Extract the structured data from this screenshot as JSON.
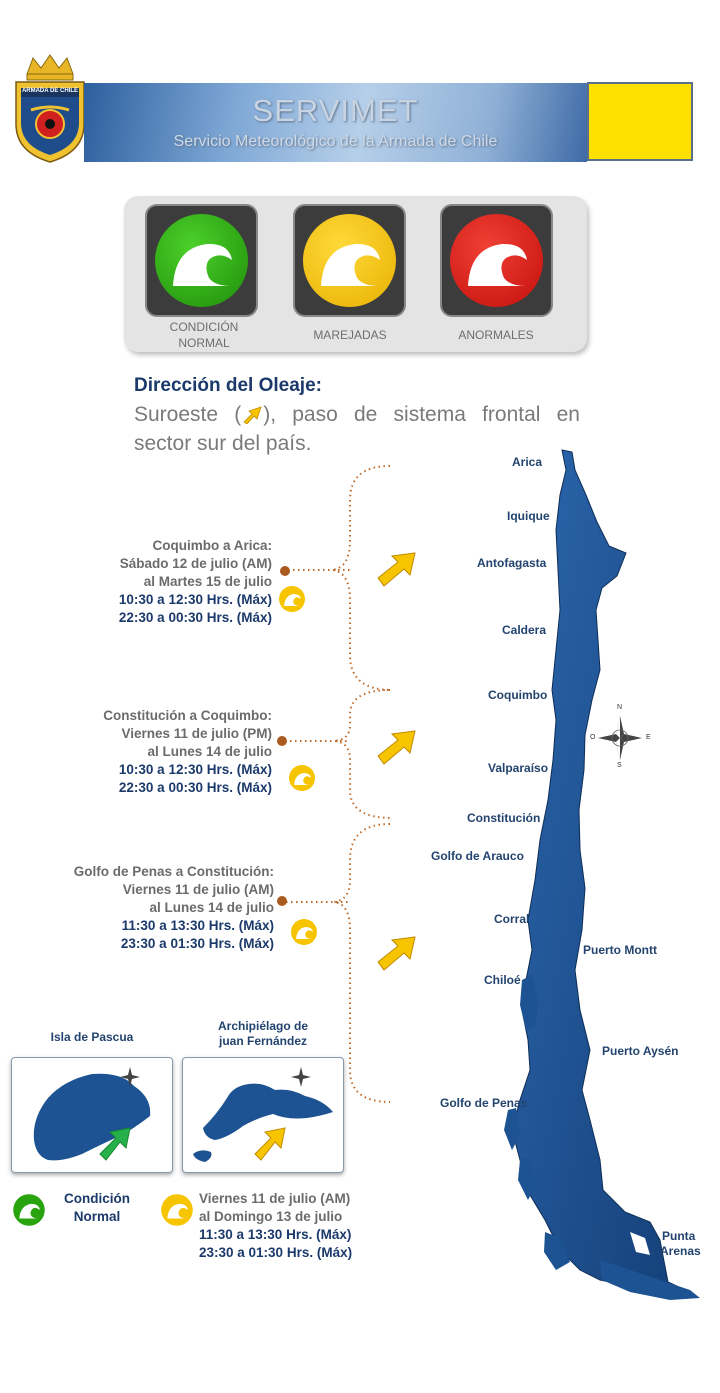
{
  "header": {
    "crest_text": "ARMADA DE CHILE",
    "title": "SERVIMET",
    "subtitle": "Servicio Meteorológico de la Armada de Chile"
  },
  "legend": {
    "items": [
      {
        "label_line1": "CONDICIÓN",
        "label_line2": "NORMAL",
        "color": "#2aa40e"
      },
      {
        "label_line1": "MAREJADAS",
        "label_line2": "",
        "color": "#f7c400"
      },
      {
        "label_line1": "ANORMALES",
        "label_line2": "",
        "color": "#e0201a"
      }
    ]
  },
  "direction": {
    "title": "Dirección del Oleaje:",
    "text_before": "Suroeste (",
    "text_after": "), paso de sistema frontal en sector sur del país."
  },
  "blocks": [
    {
      "region": "Coquimbo a Arica:",
      "line2": "Sábado 12 de julio (AM)",
      "line3": "al Martes 15 de julio",
      "time1": "10:30 a 12:30 Hrs. (Máx)",
      "time2": "22:30 a 00:30 Hrs. (Máx)"
    },
    {
      "region": "Constitución a Coquimbo:",
      "line2": "Viernes 11 de julio (PM)",
      "line3": "al Lunes 14 de julio",
      "time1": "10:30 a 12:30 Hrs. (Máx)",
      "time2": "22:30 a 00:30 Hrs. (Máx)"
    },
    {
      "region": "Golfo de Penas a Constitución:",
      "line2": "Viernes 11 de julio (AM)",
      "line3": "al Lunes 14 de julio",
      "time1": "11:30 a 13:30 Hrs. (Máx)",
      "time2": "23:30 a 01:30 Hrs. (Máx)"
    }
  ],
  "cities": [
    "Arica",
    "Iquique",
    "Antofagasta",
    "Caldera",
    "Coquimbo",
    "Valparaíso",
    "Constitución",
    "Golfo de Arauco",
    "Corral",
    "Puerto Montt",
    "Chiloé",
    "Puerto Aysén",
    "Golfo de Penas",
    "Punta",
    "Arenas"
  ],
  "compass": {
    "n": "N",
    "s": "S",
    "e": "E",
    "o": "O"
  },
  "insets": {
    "pascua_title": "Isla de Pascua",
    "juan_title_line1": "Archipiélago de",
    "juan_title_line2": "juan Fernández"
  },
  "footer": {
    "normal_line1": "Condición",
    "normal_line2": "Normal",
    "marejadas_line1": "Viernes 11 de julio (AM)",
    "marejadas_line2": "al Domingo 13 de julio",
    "marejadas_time1": "11:30 a 13:30 Hrs. (Máx)",
    "marejadas_time2": "23:30 a 01:30 Hrs. (Máx)"
  },
  "colors": {
    "navy": "#1b3a6b",
    "map_blue": "#1d5392",
    "yellow": "#f7c400",
    "green": "#2aa40e",
    "red": "#e0201a",
    "bracket": "#c06a2a"
  }
}
